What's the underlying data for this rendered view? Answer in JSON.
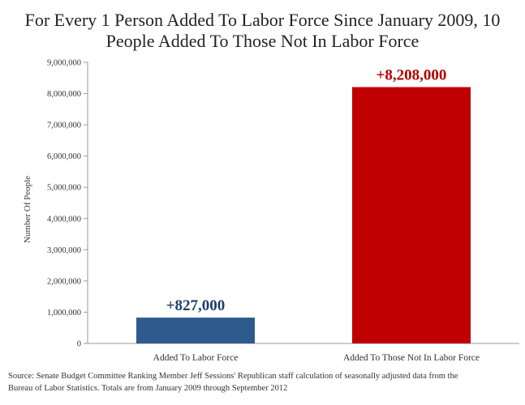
{
  "chart_data": {
    "type": "bar",
    "title_lines": [
      "For Every 1 Person Added To Labor Force Since January 2009, 10",
      "People Added To Those Not In Labor Force"
    ],
    "ylabel": "Number Of People",
    "xlabel": "",
    "categories": [
      "Added To Labor Force",
      "Added To Those Not In Labor Force"
    ],
    "values": [
      827000,
      8208000
    ],
    "data_labels": [
      "+827,000",
      "+8,208,000"
    ],
    "bar_colors": [
      "#2e5a8e",
      "#c00000"
    ],
    "label_colors": [
      "#1f3f66",
      "#b00000"
    ],
    "ylim": [
      0,
      9000000
    ],
    "yticks": [
      0,
      1000000,
      2000000,
      3000000,
      4000000,
      5000000,
      6000000,
      7000000,
      8000000,
      9000000
    ],
    "ytick_labels": [
      "0",
      "1,000,000",
      "2,000,000",
      "3,000,000",
      "4,000,000",
      "5,000,000",
      "6,000,000",
      "7,000,000",
      "8,000,000",
      "9,000,000"
    ],
    "grid": false,
    "legend": "none"
  },
  "source": {
    "line1": "Source: Senate Budget Committee Ranking Member Jeff Sessions' Republican staff calculation of  seasonally adjusted data from the",
    "line2": "Bureau of Labor Statistics. Totals are from January 2009 through September 2012"
  }
}
